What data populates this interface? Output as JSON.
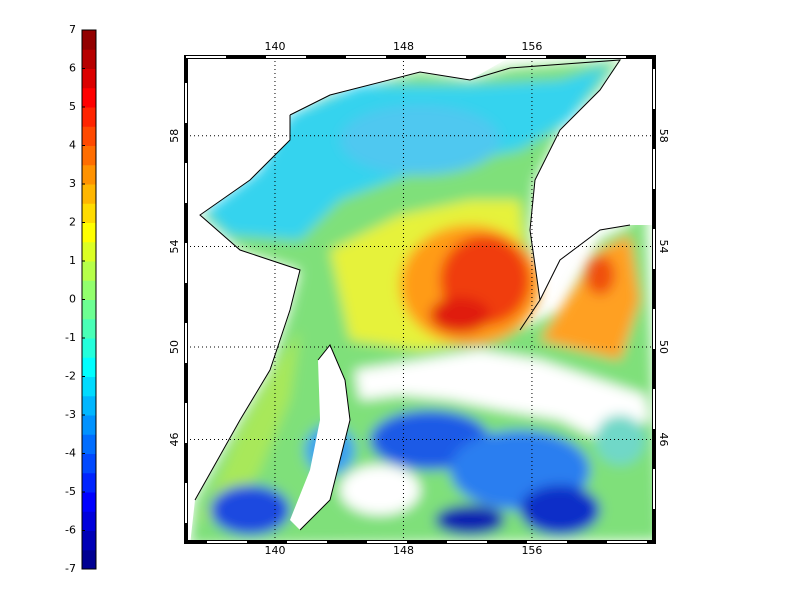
{
  "colorbar": {
    "colormap": "jet",
    "levels": 28,
    "limits": [
      -7,
      7
    ],
    "ticks": [
      -7,
      -6,
      -5,
      -4,
      -3,
      -2,
      -1,
      0,
      1,
      2,
      3,
      4,
      5,
      6,
      7
    ]
  },
  "map": {
    "projection": "mercator",
    "xlim": [
      134.46,
      163.6
    ],
    "ylim": [
      41.2,
      60.6
    ],
    "xticks": [
      140,
      148,
      156
    ],
    "yticks": [
      46,
      50,
      54,
      58
    ],
    "grid": true
  }
}
